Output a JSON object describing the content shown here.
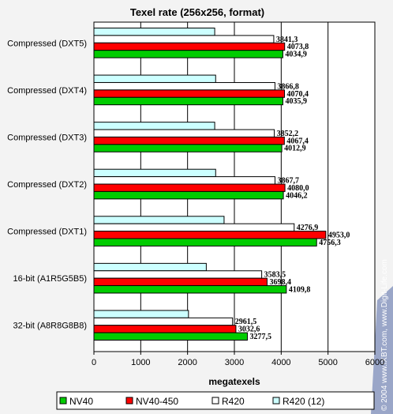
{
  "chart_data": {
    "type": "bar",
    "orientation": "horizontal",
    "title": "Texel rate (256x256, format)",
    "xlabel": "megatexels",
    "ylabel": "",
    "xlim": [
      0,
      6000
    ],
    "xticks": [
      0,
      1000,
      2000,
      3000,
      4000,
      5000,
      6000
    ],
    "grid": true,
    "legend_position": "bottom",
    "categories": [
      "Compressed (DXT5)",
      "Compressed (DXT4)",
      "Compressed (DXT3)",
      "Compressed (DXT2)",
      "Compressed (DXT1)",
      "16-bit  (A1R5G5B5)",
      "32-bit  (A8R8G8B8)"
    ],
    "series": [
      {
        "name": "R420 (12)",
        "color": "#ccffff",
        "values": [
          2580,
          2600,
          2580,
          2600,
          2780,
          2400,
          2020
        ],
        "labels": [
          "",
          "",
          "",
          "",
          "",
          "",
          ""
        ]
      },
      {
        "name": "R420",
        "color": "#ffffff",
        "values": [
          3841.3,
          3866.8,
          3852.2,
          3867.7,
          4276.9,
          3583.5,
          2961.5
        ],
        "labels": [
          "3841,3",
          "3866,8",
          "3852,2",
          "3867,7",
          "4276,9",
          "3583,5",
          "2961,5"
        ]
      },
      {
        "name": "NV40-450",
        "color": "#ff0000",
        "values": [
          4073.8,
          4070.4,
          4067.4,
          4080.0,
          4953.0,
          3698.4,
          3032.6
        ],
        "labels": [
          "4073,8",
          "4070,4",
          "4067,4",
          "4080,0",
          "4953,0",
          "3698,4",
          "3032,6"
        ]
      },
      {
        "name": "NV40",
        "color": "#00cc00",
        "values": [
          4034.9,
          4035.9,
          4012.9,
          4046.2,
          4756.3,
          4109.8,
          3277.5
        ],
        "labels": [
          "4034,9",
          "4035,9",
          "4012,9",
          "4046,2",
          "4756,3",
          "4109,8",
          "3277,5"
        ]
      }
    ],
    "legend_order": [
      "NV40",
      "NV40-450",
      "R420",
      "R420 (12)"
    ],
    "watermark": "© 2004 www.iXBT.com, www.Digit-Life.com"
  }
}
